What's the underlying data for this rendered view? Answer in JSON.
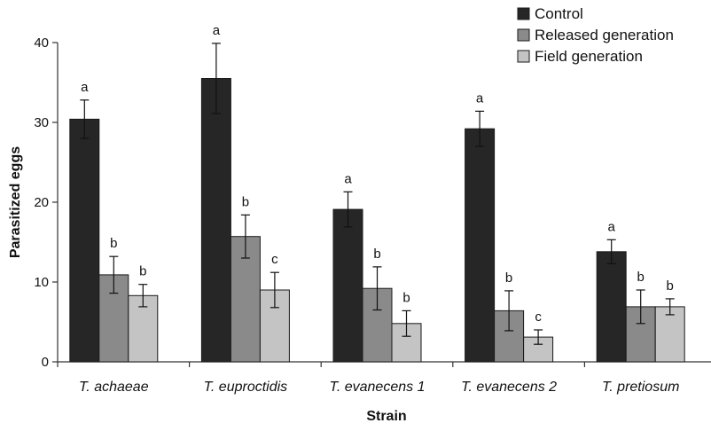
{
  "chart_data": {
    "type": "bar",
    "title": "",
    "xlabel": "Strain",
    "ylabel": "Parasitized eggs",
    "ylim": [
      0,
      40
    ],
    "yticks": [
      0,
      10,
      20,
      30,
      40
    ],
    "grid": false,
    "legend_position": "top-right",
    "categories": [
      "T. achaeae",
      "T. euproctidis",
      "T. evanecens 1",
      "T. evanecens 2",
      "T. pretiosum"
    ],
    "series": [
      {
        "name": "Control",
        "color": "#262626",
        "values": [
          30.4,
          35.5,
          19.1,
          29.2,
          13.8
        ],
        "error": [
          2.4,
          4.4,
          2.2,
          2.2,
          1.5
        ],
        "significance": [
          "a",
          "a",
          "a",
          "a",
          "a"
        ]
      },
      {
        "name": "Released generation",
        "color": "#8a8a8a",
        "values": [
          10.9,
          15.7,
          9.2,
          6.4,
          6.9
        ],
        "error": [
          2.3,
          2.7,
          2.7,
          2.5,
          2.1
        ],
        "significance": [
          "b",
          "b",
          "b",
          "b",
          "b"
        ]
      },
      {
        "name": "Field generation",
        "color": "#c4c4c4",
        "values": [
          8.3,
          9.0,
          4.8,
          3.1,
          6.9
        ],
        "error": [
          1.4,
          2.2,
          1.6,
          0.9,
          1.0
        ],
        "significance": [
          "b",
          "c",
          "b",
          "c",
          "b"
        ]
      }
    ]
  }
}
